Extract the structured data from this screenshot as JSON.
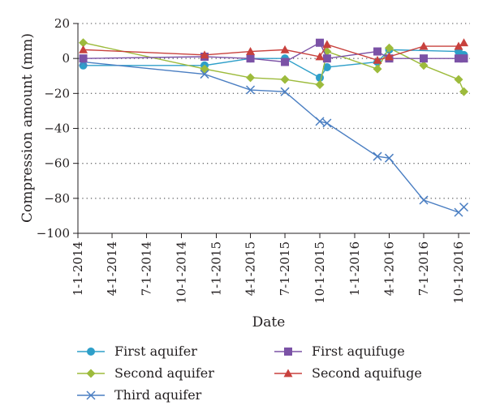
{
  "chart_data": {
    "type": "line",
    "xlabel": "Date",
    "ylabel": "Compression amount (mm)",
    "ylim": [
      -100,
      20
    ],
    "yticks": [
      -100,
      -80,
      -60,
      -40,
      -20,
      0,
      20
    ],
    "yticks_text": [
      "−100",
      "−80",
      "−60",
      "−40",
      "−20",
      "0",
      "20"
    ],
    "xlim": [
      "2014-01-01",
      "2016-10-31"
    ],
    "xticks": [
      "1-1-2014",
      "4-1-2014",
      "7-1-2014",
      "10-1-2014",
      "1-1-2015",
      "4-1-2015",
      "7-1-2015",
      "10-1-2015",
      "1-1-2016",
      "4-1-2016",
      "7-1-2016",
      "10-1-2016"
    ],
    "grid": "horizontal dotted",
    "legend_position": "bottom",
    "series": [
      {
        "name": "First aquifer",
        "color": "#2e9fc9",
        "marker": "circle",
        "x": [
          "2014-01-15",
          "2014-12-01",
          "2015-04-01",
          "2015-07-01",
          "2015-10-01",
          "2015-10-20",
          "2016-03-01",
          "2016-04-01",
          "2016-10-01",
          "2016-10-15"
        ],
        "y": [
          -4,
          -4,
          0,
          0,
          -11,
          -5,
          -2,
          5,
          4,
          2
        ]
      },
      {
        "name": "Second aquifer",
        "color": "#9dbb3c",
        "marker": "diamond",
        "x": [
          "2014-01-15",
          "2014-12-01",
          "2015-04-01",
          "2015-07-01",
          "2015-10-01",
          "2015-10-20",
          "2016-03-01",
          "2016-04-01",
          "2016-07-01",
          "2016-10-01",
          "2016-10-15"
        ],
        "y": [
          9,
          -6,
          -11,
          -12,
          -15,
          4,
          -6,
          6,
          -4,
          -12,
          -19
        ]
      },
      {
        "name": "Third aquifer",
        "color": "#4a7ec2",
        "marker": "x",
        "x": [
          "2014-01-15",
          "2014-12-01",
          "2015-04-01",
          "2015-07-01",
          "2015-10-01",
          "2015-10-20",
          "2016-03-01",
          "2016-04-01",
          "2016-07-01",
          "2016-10-01",
          "2016-10-15"
        ],
        "y": [
          -2,
          -9,
          -18,
          -19,
          -36,
          -37,
          -56,
          -57,
          -81,
          -88,
          -85
        ]
      },
      {
        "name": "First aquifuge",
        "color": "#7b52a6",
        "marker": "square",
        "x": [
          "2014-01-15",
          "2014-12-01",
          "2015-04-01",
          "2015-07-01",
          "2015-10-01",
          "2015-10-20",
          "2016-03-01",
          "2016-04-01",
          "2016-07-01",
          "2016-10-01",
          "2016-10-15"
        ],
        "y": [
          0,
          1,
          0,
          -2,
          9,
          0,
          4,
          0,
          0,
          0,
          0
        ]
      },
      {
        "name": "Second aquifuge",
        "color": "#c8413d",
        "marker": "triangle",
        "x": [
          "2014-01-15",
          "2014-12-01",
          "2015-04-01",
          "2015-07-01",
          "2015-10-01",
          "2015-10-20",
          "2016-03-01",
          "2016-04-01",
          "2016-07-01",
          "2016-10-01",
          "2016-10-15"
        ],
        "y": [
          5,
          2,
          4,
          5,
          1,
          8,
          -1,
          1,
          7,
          7,
          9
        ]
      }
    ]
  }
}
